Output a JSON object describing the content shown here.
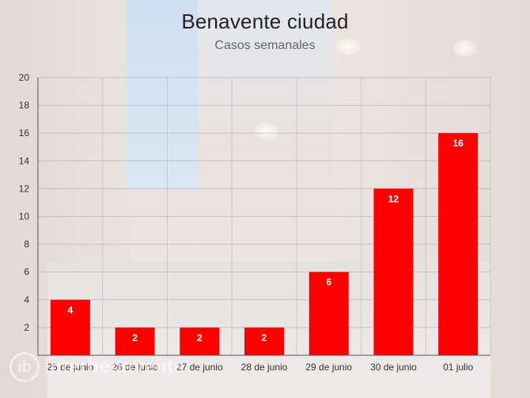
{
  "chart_data": {
    "type": "bar",
    "title": "Benavente ciudad",
    "subtitle": "Casos semanales",
    "categories": [
      "25 de junio",
      "26 de junio",
      "27 de junio",
      "28 de junio",
      "29 de junio",
      "30 de junio",
      "01 julio"
    ],
    "values": [
      4,
      2,
      2,
      2,
      6,
      12,
      16
    ],
    "ylim": [
      0,
      20
    ],
    "yticks": [
      2,
      4,
      6,
      8,
      10,
      12,
      14,
      16,
      18,
      20
    ],
    "grid": true,
    "bar_color": "#ff0000",
    "label_color": "#ffffff"
  },
  "watermark": {
    "text": "interbenavente"
  }
}
